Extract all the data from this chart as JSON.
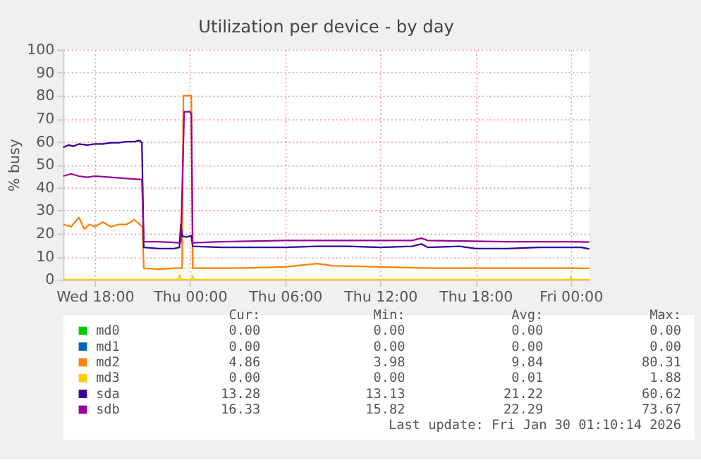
{
  "chart_data": {
    "type": "line",
    "title": "Utilization per device - by day",
    "ylabel": "% busy",
    "ylim": [
      0,
      100
    ],
    "yticks": [
      0,
      10,
      20,
      30,
      40,
      50,
      60,
      70,
      80,
      90,
      100
    ],
    "xlim": [
      "2026-01-28T16:00",
      "2026-01-30T01:10"
    ],
    "xticks": [
      {
        "value": "2026-01-28T18:00",
        "label": "Wed 18:00"
      },
      {
        "value": "2026-01-29T00:00",
        "label": "Thu 00:00"
      },
      {
        "value": "2026-01-29T06:00",
        "label": "Thu 06:00"
      },
      {
        "value": "2026-01-29T12:00",
        "label": "Thu 12:00"
      },
      {
        "value": "2026-01-29T18:00",
        "label": "Thu 18:00"
      },
      {
        "value": "2026-01-30T00:00",
        "label": "Fri 00:00"
      }
    ],
    "grid": true,
    "legend": "bottom",
    "line_style": "solid",
    "marker": "none",
    "series": [
      {
        "name": "md0",
        "color": "#00cc00"
      },
      {
        "name": "md1",
        "color": "#0066b3"
      },
      {
        "name": "md2",
        "color": "#ff8000",
        "x": [
          "2026-01-28T16:00",
          "2026-01-28T16:30",
          "2026-01-28T17:00",
          "2026-01-28T17:20",
          "2026-01-28T17:40",
          "2026-01-28T18:00",
          "2026-01-28T18:30",
          "2026-01-28T19:00",
          "2026-01-28T19:30",
          "2026-01-28T20:00",
          "2026-01-28T20:30",
          "2026-01-28T20:50",
          "2026-01-28T21:00",
          "2026-01-28T21:05",
          "2026-01-28T22:00",
          "2026-01-28T23:00",
          "2026-01-28T23:30",
          "2026-01-28T23:35",
          "2026-01-29T00:05",
          "2026-01-29T00:10",
          "2026-01-29T01:00",
          "2026-01-29T03:00",
          "2026-01-29T06:00",
          "2026-01-29T08:00",
          "2026-01-29T09:00",
          "2026-01-29T12:00",
          "2026-01-29T15:00",
          "2026-01-29T18:00",
          "2026-01-29T21:00",
          "2026-01-30T00:00",
          "2026-01-30T01:10"
        ],
        "values": [
          24,
          23,
          27,
          22,
          24,
          23,
          25,
          23,
          24,
          24,
          26,
          24,
          23,
          5,
          4.5,
          5,
          5,
          80,
          80,
          5,
          5,
          5,
          5.5,
          7,
          6,
          5.5,
          5,
          5,
          5,
          5,
          4.9
        ]
      },
      {
        "name": "md3",
        "color": "#ffcc00",
        "x": [
          "2026-01-28T16:00",
          "2026-01-28T23:15",
          "2026-01-28T23:20",
          "2026-01-28T23:25",
          "2026-01-29T00:05",
          "2026-01-29T00:10",
          "2026-01-29T00:15",
          "2026-01-29T23:55",
          "2026-01-30T00:00",
          "2026-01-30T00:05",
          "2026-01-30T01:10"
        ],
        "values": [
          0,
          0,
          2,
          0,
          0,
          1.5,
          0,
          0,
          1.2,
          0,
          0
        ]
      },
      {
        "name": "sda",
        "color": "#330099",
        "x": [
          "2026-01-28T16:00",
          "2026-01-28T16:20",
          "2026-01-28T16:40",
          "2026-01-28T17:00",
          "2026-01-28T17:30",
          "2026-01-28T18:00",
          "2026-01-28T18:30",
          "2026-01-28T19:00",
          "2026-01-28T19:30",
          "2026-01-28T20:00",
          "2026-01-28T20:30",
          "2026-01-28T20:50",
          "2026-01-28T20:58",
          "2026-01-28T21:05",
          "2026-01-28T22:00",
          "2026-01-28T23:00",
          "2026-01-28T23:20",
          "2026-01-28T23:25",
          "2026-01-28T23:30",
          "2026-01-28T23:45",
          "2026-01-29T00:05",
          "2026-01-29T00:10",
          "2026-01-29T02:00",
          "2026-01-29T04:00",
          "2026-01-29T06:00",
          "2026-01-29T08:00",
          "2026-01-29T10:00",
          "2026-01-29T12:00",
          "2026-01-29T14:00",
          "2026-01-29T14:35",
          "2026-01-29T15:00",
          "2026-01-29T17:00",
          "2026-01-29T18:00",
          "2026-01-29T20:00",
          "2026-01-29T22:00",
          "2026-01-30T00:00",
          "2026-01-30T00:40",
          "2026-01-30T01:10"
        ],
        "values": [
          57.5,
          58.5,
          58,
          59,
          58.5,
          59,
          59,
          59.5,
          59.5,
          60,
          60,
          60.5,
          59.5,
          14,
          13.5,
          13.5,
          14,
          24,
          19,
          18.5,
          19,
          14.5,
          14,
          14,
          14,
          14.5,
          14.5,
          14,
          14.5,
          15.5,
          14,
          14.5,
          13.5,
          13.5,
          14,
          14,
          14,
          13.3
        ]
      },
      {
        "name": "sdb",
        "color": "#990099",
        "x": [
          "2026-01-28T16:00",
          "2026-01-28T16:30",
          "2026-01-28T17:00",
          "2026-01-28T17:30",
          "2026-01-28T18:00",
          "2026-01-28T19:00",
          "2026-01-28T20:00",
          "2026-01-28T20:58",
          "2026-01-28T21:05",
          "2026-01-28T22:00",
          "2026-01-28T23:25",
          "2026-01-28T23:38",
          "2026-01-29T00:00",
          "2026-01-29T00:05",
          "2026-01-29T00:10",
          "2026-01-29T02:00",
          "2026-01-29T06:00",
          "2026-01-29T10:00",
          "2026-01-29T14:00",
          "2026-01-29T14:35",
          "2026-01-29T15:00",
          "2026-01-29T20:00",
          "2026-01-30T00:00",
          "2026-01-30T01:10"
        ],
        "values": [
          45,
          46,
          45,
          44.5,
          45,
          44.5,
          44,
          43.5,
          16.5,
          16.5,
          16,
          73,
          73,
          72,
          16,
          16.5,
          17,
          17,
          17,
          18,
          17,
          16.5,
          16.5,
          16.3
        ]
      }
    ],
    "annotations": [
      "Cur:",
      "Min:",
      "Avg:",
      "Max:",
      "0.00",
      "0.00",
      "0.00",
      "0.00",
      "0.00",
      "0.00",
      "0.00",
      "0.00",
      "4.86",
      "3.98",
      "9.84",
      "80.31",
      "0.00",
      "0.00",
      "0.01",
      "1.88",
      "13.28",
      "13.13",
      "21.22",
      "60.62",
      "16.33",
      "15.82",
      "22.29",
      "73.67",
      "Last update: Fri Jan 30 01:10:14 2026"
    ]
  }
}
